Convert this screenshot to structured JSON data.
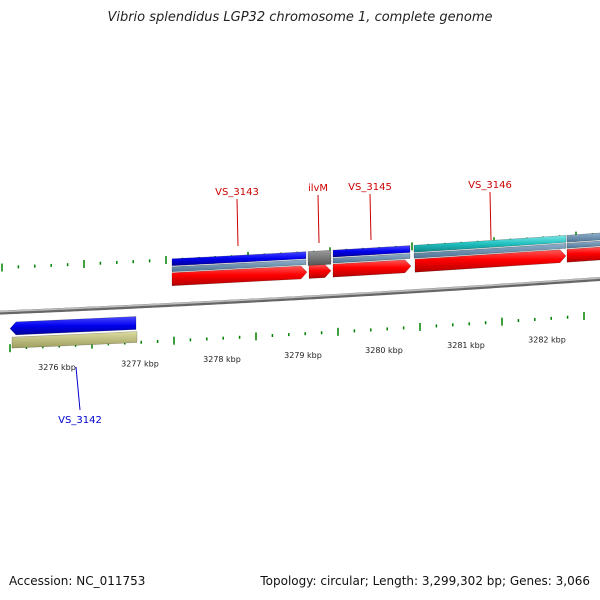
{
  "title": "Vibrio splendidus LGP32 chromosome 1, complete genome",
  "accession": "Accession: NC_011753",
  "stats": "Topology: circular; Length: 3,299,302 bp; Genes: 3,066",
  "scale_labels": [
    "3276 kbp",
    "3277 kbp",
    "3278 kbp",
    "3279 kbp",
    "3280 kbp",
    "3281 kbp",
    "3282 kbp"
  ],
  "gene_labels": {
    "forward": [
      "VS_3143",
      "ilvM",
      "VS_3145",
      "VS_3146"
    ],
    "reverse": [
      "VS_3142"
    ]
  },
  "colors": {
    "cds": "#ff0000",
    "gene_blue": "#0000ee",
    "gene_cyan": "#20c0c0",
    "gene_gray": "#6a6a6a",
    "gene_olive": "#bdbd78",
    "ticks": "#008000",
    "forward_label": "#cc0000",
    "reverse_label": "#0000cc",
    "backbone": "#8a8a8a"
  }
}
